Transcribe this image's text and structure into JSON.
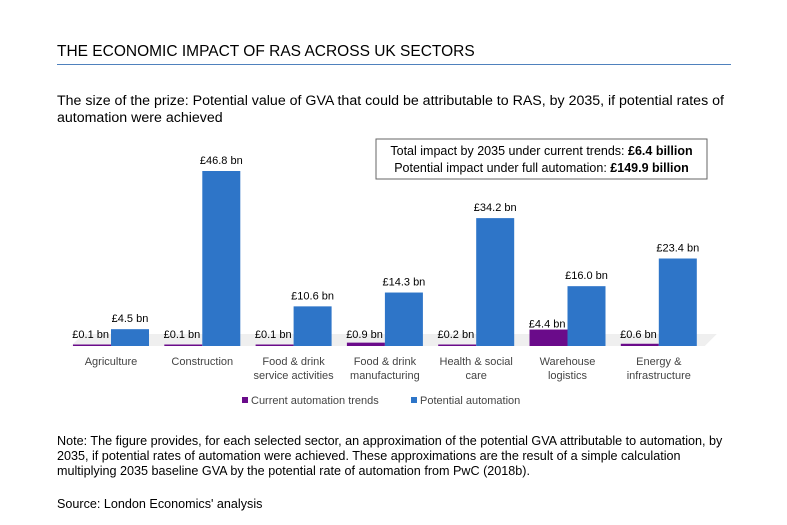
{
  "heading": "THE ECONOMIC IMPACT OF RAS ACROSS UK SECTORS",
  "subtitle": "The size of the prize: Potential value of GVA that could be attributable to RAS, by 2035, if potential rates of automation were achieved",
  "note": "Note: The figure provides, for each selected sector, an approximation of the potential GVA attributable to automation, by 2035, if potential rates of automation were achieved. These approximations are the result of a simple calculation multiplying 2035 baseline GVA by the potential rate of automation from PwC (2018b).",
  "source": "Source: London Economics' analysis",
  "chart_data": {
    "type": "bar",
    "categories": [
      [
        "Agriculture"
      ],
      [
        "Construction"
      ],
      [
        "Food & drink",
        "service activities"
      ],
      [
        "Food & drink",
        "manufacturing"
      ],
      [
        "Health & social",
        "care"
      ],
      [
        "Warehouse",
        "logistics"
      ],
      [
        "Energy &",
        "infrastructure"
      ]
    ],
    "series": [
      {
        "name": "Current automation trends",
        "color": "#6a0b8a",
        "values": [
          0.1,
          0.1,
          0.1,
          0.9,
          0.2,
          4.4,
          0.6
        ],
        "labels": [
          "£0.1 bn",
          "£0.1 bn",
          "£0.1 bn",
          "£0.9 bn",
          "£0.2 bn",
          "£4.4 bn",
          "£0.6 bn"
        ]
      },
      {
        "name": "Potential automation",
        "color": "#2e75c8",
        "values": [
          4.5,
          46.8,
          10.6,
          14.3,
          34.2,
          16.0,
          23.4
        ],
        "labels": [
          "£4.5 bn",
          "£46.8 bn",
          "£10.6 bn",
          "£14.3 bn",
          "£34.2 bn",
          "£16.0 bn",
          "£23.4 bn"
        ]
      }
    ],
    "legend_position": "bottom",
    "grid": false,
    "annotation": {
      "line1_text": "Total impact by 2035 under current trends: ",
      "line1_value": "£6.4 billion",
      "line2_text": "Potential impact under full automation: ",
      "line2_value": "£149.9 billion"
    }
  }
}
